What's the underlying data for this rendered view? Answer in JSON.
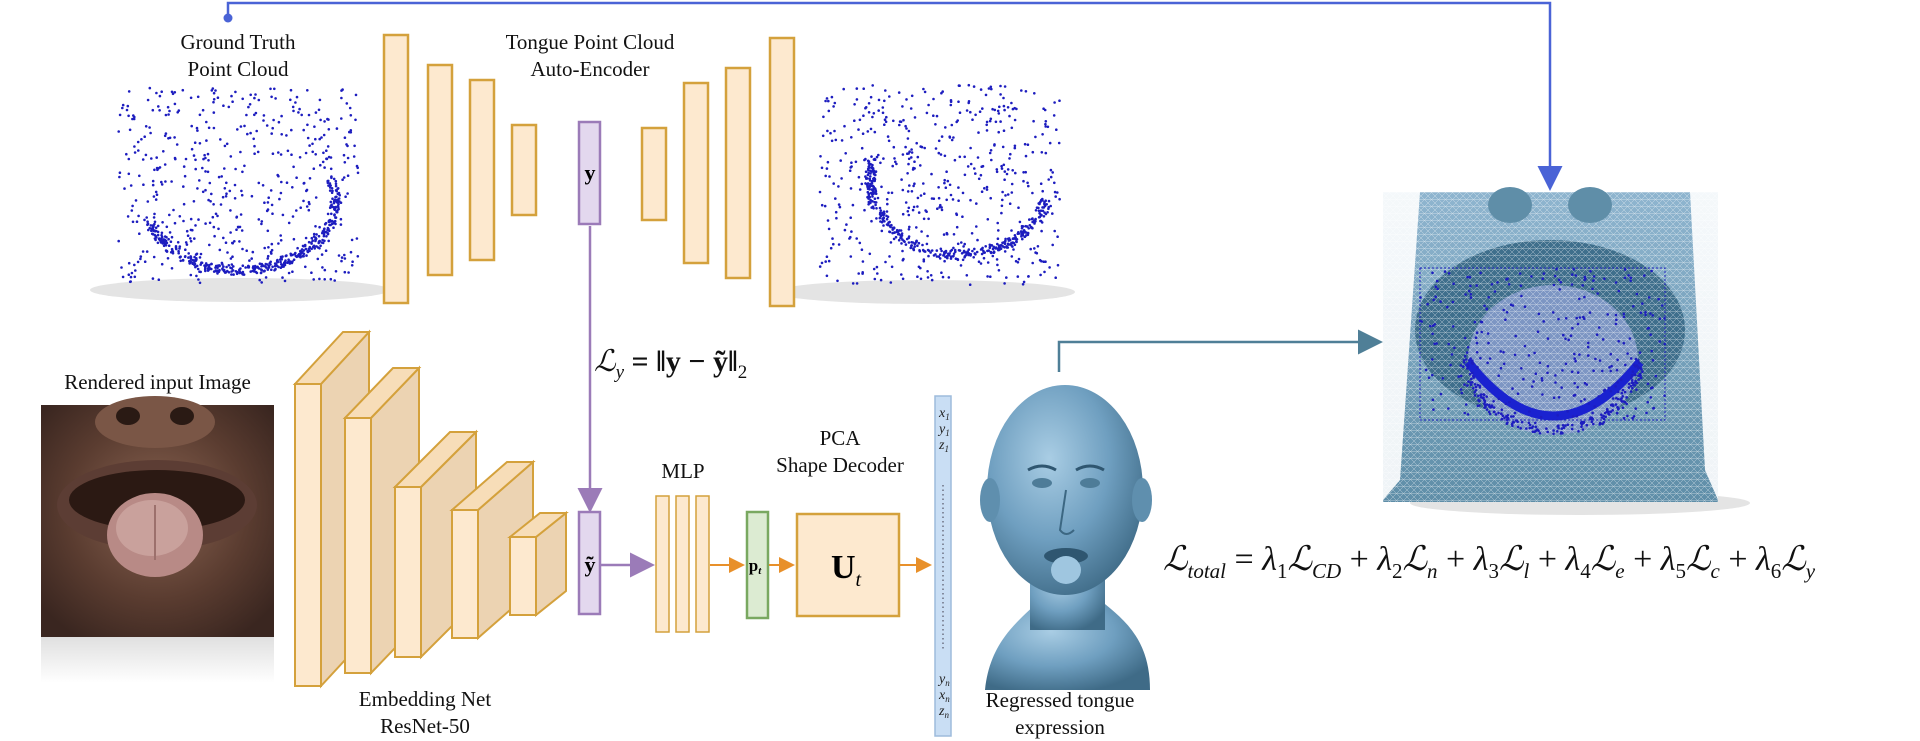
{
  "labels": {
    "gt_line1": "Ground Truth",
    "gt_line2": "Point Cloud",
    "ae_line1": "Tongue Point Cloud",
    "ae_line2": "Auto-Encoder",
    "rendered": "Rendered input Image",
    "embed_line1": "Embedding Net",
    "embed_line2": "ResNet-50",
    "mlp": "MLP",
    "pca_line1": "PCA",
    "pca_line2": "Shape Decoder",
    "regressed_line1": "Regressed tongue",
    "regressed_line2": "expression"
  },
  "symbols": {
    "latent": "y",
    "latent_pred": "ỹ",
    "pt": "p",
    "pt_sub": "t",
    "decoder": "U",
    "decoder_sub": "t"
  },
  "vector_labels": {
    "top": [
      "x",
      "y",
      "z"
    ],
    "top_sub": "1",
    "bottom": [
      "y",
      "x",
      "z"
    ],
    "bottom_sub": "n"
  },
  "loss_y": {
    "script": "ℒ",
    "sub": "y",
    "rhs": " = ‖y − ỹ‖",
    "norm_sub": "2"
  },
  "loss_total": {
    "script": "ℒ",
    "sub": "total",
    "terms": [
      {
        "coef": "λ",
        "coef_sub": "1",
        "sym": "ℒ",
        "sym_sub": "CD"
      },
      {
        "coef": "λ",
        "coef_sub": "2",
        "sym": "ℒ",
        "sym_sub": "n"
      },
      {
        "coef": "λ",
        "coef_sub": "3",
        "sym": "ℒ",
        "sym_sub": "l"
      },
      {
        "coef": "λ",
        "coef_sub": "4",
        "sym": "ℒ",
        "sym_sub": "e"
      },
      {
        "coef": "λ",
        "coef_sub": "5",
        "sym": "ℒ",
        "sym_sub": "c"
      },
      {
        "coef": "λ",
        "coef_sub": "6",
        "sym": "ℒ",
        "sym_sub": "y"
      }
    ]
  },
  "colors": {
    "block_fill": "#fde9cf",
    "block_stroke": "#d4a13c",
    "latent_fill": "#e3d8ee",
    "latent_stroke": "#9b7bb8",
    "pt_fill": "#dcebd2",
    "pt_stroke": "#79a860",
    "vector_fill": "#c9def4",
    "vector_stroke": "#9ebbdc",
    "points": "#1d1dbf",
    "arrow_blue": "#4a63d6",
    "arrow_teal": "#4f7f97",
    "arrow_purple": "#9b7bb8",
    "arrow_orange": "#e8902a",
    "head": "#6f9fc0"
  }
}
